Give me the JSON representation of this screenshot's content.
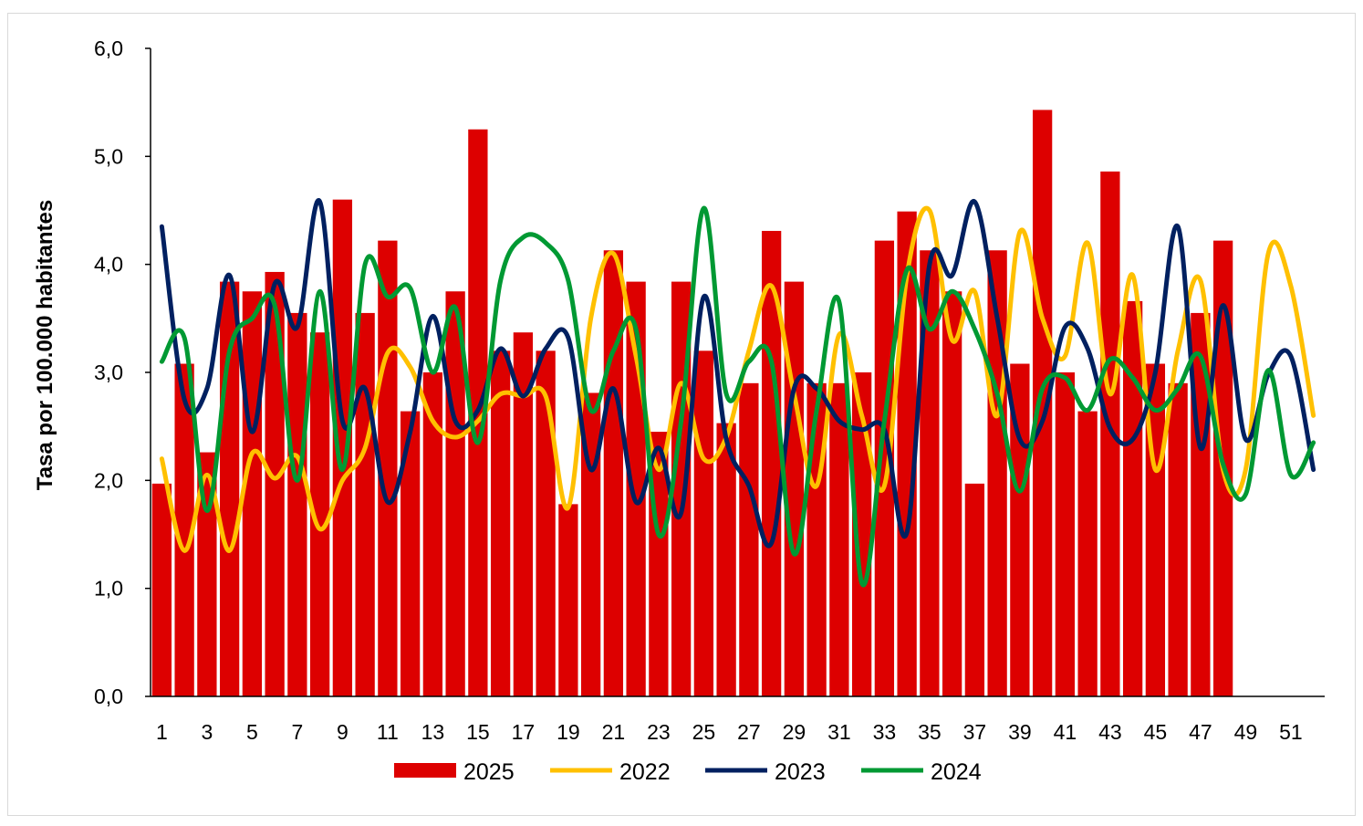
{
  "chart_data": {
    "type": "bar",
    "ylabel": "Tasa por 100.000 habitantes",
    "xlabel": "",
    "ylim": [
      0,
      6
    ],
    "yticks": [
      "0,0",
      "1,0",
      "2,0",
      "3,0",
      "4,0",
      "5,0",
      "6,0"
    ],
    "xticks": [
      "1",
      "3",
      "5",
      "7",
      "9",
      "11",
      "13",
      "15",
      "17",
      "19",
      "21",
      "23",
      "25",
      "27",
      "29",
      "31",
      "33",
      "35",
      "37",
      "39",
      "41",
      "43",
      "45",
      "47",
      "49",
      "51"
    ],
    "x": [
      1,
      2,
      3,
      4,
      5,
      6,
      7,
      8,
      9,
      10,
      11,
      12,
      13,
      14,
      15,
      16,
      17,
      18,
      19,
      20,
      21,
      22,
      23,
      24,
      25,
      26,
      27,
      28,
      29,
      30,
      31,
      32,
      33,
      34,
      35,
      36,
      37,
      38,
      39,
      40,
      41,
      42,
      43,
      44,
      45,
      46,
      47,
      48,
      49,
      50,
      51,
      52
    ],
    "grid": false,
    "legend_position": "bottom",
    "bars": {
      "name": "2025",
      "color": "#dd0000",
      "values": [
        1.97,
        3.08,
        2.26,
        3.84,
        3.75,
        3.93,
        3.55,
        3.37,
        4.6,
        3.55,
        4.22,
        2.64,
        3.0,
        3.75,
        5.25,
        3.2,
        3.37,
        3.2,
        1.78,
        2.81,
        4.13,
        3.84,
        2.45,
        3.84,
        3.2,
        2.53,
        2.9,
        4.31,
        3.84,
        2.9,
        2.9,
        3.0,
        4.22,
        4.49,
        4.13,
        3.75,
        1.97,
        4.13,
        3.08,
        5.43,
        3.0,
        2.64,
        4.86,
        3.66,
        3.08,
        2.9,
        3.55,
        4.22
      ]
    },
    "series": [
      {
        "name": "2022",
        "color": "#ffc000",
        "values": [
          2.2,
          1.35,
          2.05,
          1.35,
          2.25,
          2.02,
          2.22,
          1.55,
          2.0,
          2.3,
          3.18,
          3.05,
          2.55,
          2.4,
          2.55,
          2.8,
          2.78,
          2.78,
          1.75,
          3.5,
          4.1,
          3.15,
          2.1,
          2.9,
          2.2,
          2.4,
          3.2,
          3.8,
          2.8,
          1.95,
          3.35,
          2.6,
          1.95,
          3.9,
          4.5,
          3.3,
          3.75,
          2.6,
          4.3,
          3.5,
          3.15,
          4.2,
          2.8,
          3.9,
          2.1,
          3.2,
          3.85,
          2.1,
          2.1,
          4.1,
          3.8,
          2.6
        ]
      },
      {
        "name": "2023",
        "color": "#002060",
        "values": [
          4.35,
          2.75,
          2.85,
          3.9,
          2.45,
          3.82,
          3.42,
          4.58,
          2.55,
          2.85,
          1.8,
          2.45,
          3.52,
          2.55,
          2.65,
          3.22,
          2.78,
          3.22,
          3.32,
          2.1,
          2.85,
          1.8,
          2.3,
          1.7,
          3.7,
          2.38,
          1.95,
          1.42,
          2.85,
          2.85,
          2.55,
          2.47,
          2.47,
          1.52,
          4.0,
          3.9,
          4.58,
          3.5,
          2.38,
          2.55,
          3.42,
          3.22,
          2.48,
          2.38,
          3.0,
          4.35,
          2.3,
          3.62,
          2.38,
          2.98,
          3.15,
          2.1
        ]
      },
      {
        "name": "2024",
        "color": "#009933",
        "values": [
          3.1,
          3.32,
          1.72,
          3.2,
          3.5,
          3.62,
          2.0,
          3.75,
          2.1,
          4.0,
          3.7,
          3.78,
          3.0,
          3.6,
          2.35,
          3.85,
          4.25,
          4.2,
          3.85,
          2.65,
          3.2,
          3.4,
          1.5,
          2.55,
          4.52,
          2.8,
          3.1,
          3.1,
          1.32,
          2.65,
          3.65,
          1.05,
          2.55,
          3.95,
          3.4,
          3.75,
          3.4,
          2.8,
          1.9,
          2.85,
          2.95,
          2.65,
          3.12,
          2.95,
          2.65,
          2.85,
          3.15,
          2.15,
          1.87,
          3.02,
          2.05,
          2.35
        ]
      }
    ]
  }
}
